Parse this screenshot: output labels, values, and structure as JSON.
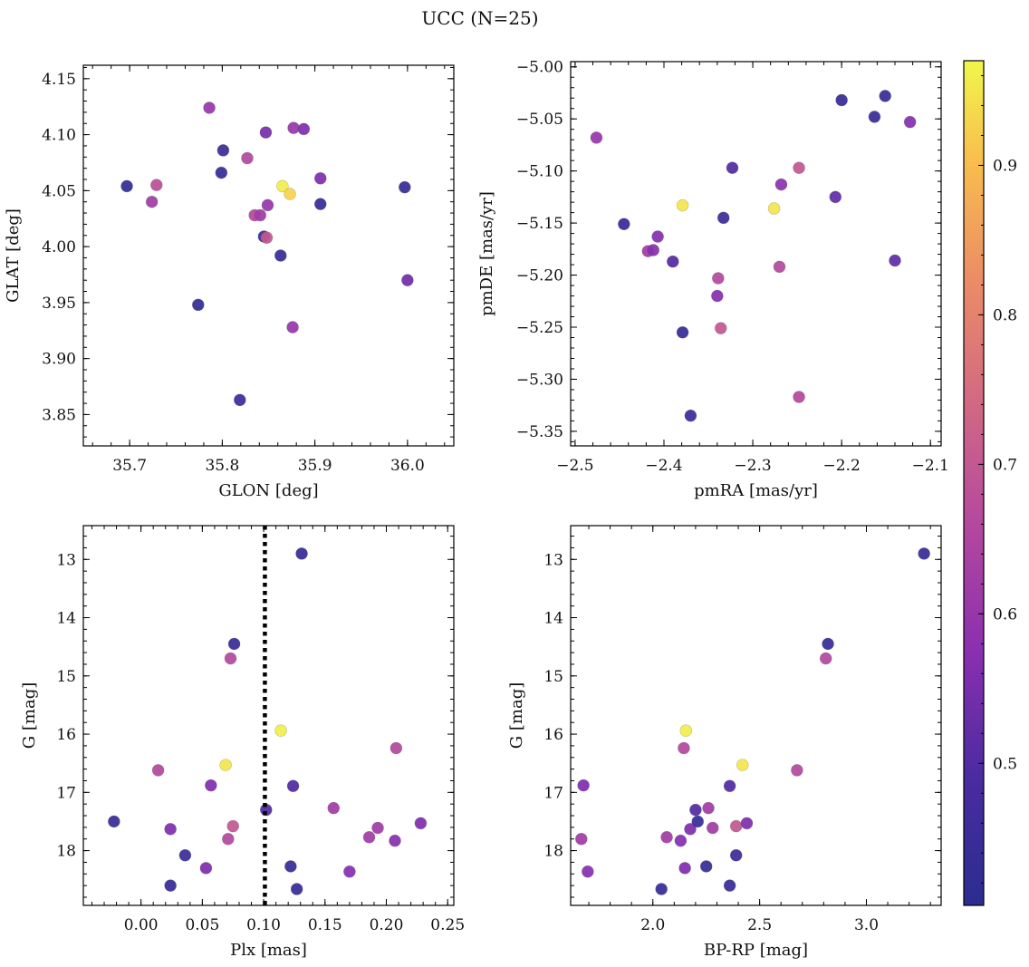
{
  "figure": {
    "title": "UCC (N=25)"
  },
  "colorbar": {
    "range": [
      0.405,
      0.97
    ],
    "ticks": [
      0.5,
      0.6,
      0.7,
      0.8,
      0.9
    ],
    "tick_labels": [
      "0.5",
      "0.6",
      "0.7",
      "0.8",
      "0.9"
    ]
  },
  "chart_data": [
    {
      "type": "scatter",
      "id": "glon_glat",
      "xlabel": "GLON [deg]",
      "ylabel": "GLAT [deg]",
      "xlim": [
        35.65,
        36.05
      ],
      "ylim": [
        3.822,
        4.162
      ],
      "xticks": [
        35.7,
        35.8,
        35.9,
        36.0
      ],
      "xtick_labels": [
        "35.7",
        "35.8",
        "35.9",
        "36.0"
      ],
      "yticks": [
        3.85,
        3.9,
        3.95,
        4.0,
        4.05,
        4.1,
        4.15
      ],
      "ytick_labels": [
        "3.85",
        "3.90",
        "3.95",
        "4.00",
        "4.05",
        "4.10",
        "4.15"
      ],
      "points": [
        {
          "x": 35.697,
          "y": 4.054,
          "c": 0.43
        },
        {
          "x": 35.724,
          "y": 4.04,
          "c": 0.62
        },
        {
          "x": 35.729,
          "y": 4.055,
          "c": 0.68
        },
        {
          "x": 35.774,
          "y": 3.948,
          "c": 0.43
        },
        {
          "x": 35.786,
          "y": 4.124,
          "c": 0.6
        },
        {
          "x": 35.799,
          "y": 4.066,
          "c": 0.44
        },
        {
          "x": 35.801,
          "y": 4.086,
          "c": 0.45
        },
        {
          "x": 35.819,
          "y": 3.863,
          "c": 0.45
        },
        {
          "x": 35.827,
          "y": 4.079,
          "c": 0.66
        },
        {
          "x": 35.835,
          "y": 4.028,
          "c": 0.66
        },
        {
          "x": 35.841,
          "y": 4.028,
          "c": 0.62
        },
        {
          "x": 35.845,
          "y": 4.009,
          "c": 0.45
        },
        {
          "x": 35.848,
          "y": 4.008,
          "c": 0.7
        },
        {
          "x": 35.847,
          "y": 4.102,
          "c": 0.55
        },
        {
          "x": 35.849,
          "y": 4.037,
          "c": 0.6
        },
        {
          "x": 35.865,
          "y": 4.054,
          "c": 0.96
        },
        {
          "x": 35.863,
          "y": 3.992,
          "c": 0.44
        },
        {
          "x": 35.873,
          "y": 4.047,
          "c": 0.93
        },
        {
          "x": 35.877,
          "y": 4.106,
          "c": 0.6
        },
        {
          "x": 35.876,
          "y": 3.928,
          "c": 0.6
        },
        {
          "x": 35.888,
          "y": 4.105,
          "c": 0.56
        },
        {
          "x": 35.906,
          "y": 4.061,
          "c": 0.56
        },
        {
          "x": 35.906,
          "y": 4.038,
          "c": 0.44
        },
        {
          "x": 35.997,
          "y": 4.053,
          "c": 0.44
        },
        {
          "x": 36.0,
          "y": 3.97,
          "c": 0.54
        }
      ]
    },
    {
      "type": "scatter",
      "id": "pmra_pmde",
      "xlabel": "pmRA [mas/yr]",
      "ylabel": "pmDE [mas/yr]",
      "xlim": [
        -2.505,
        -2.088
      ],
      "ylim": [
        -5.364,
        -4.995
      ],
      "xticks": [
        -2.5,
        -2.4,
        -2.3,
        -2.2,
        -2.1
      ],
      "xtick_labels": [
        "−2.5",
        "−2.4",
        "−2.3",
        "−2.2",
        "−2.1"
      ],
      "yticks": [
        -5.35,
        -5.3,
        -5.25,
        -5.2,
        -5.15,
        -5.1,
        -5.05,
        -5.0
      ],
      "ytick_labels": [
        "−5.35",
        "−5.30",
        "−5.25",
        "−5.20",
        "−5.15",
        "−5.10",
        "−5.05",
        "−5.00"
      ],
      "points": [
        {
          "x": -2.476,
          "y": -5.068,
          "c": 0.6
        },
        {
          "x": -2.445,
          "y": -5.151,
          "c": 0.44
        },
        {
          "x": -2.418,
          "y": -5.177,
          "c": 0.62
        },
        {
          "x": -2.412,
          "y": -5.176,
          "c": 0.57
        },
        {
          "x": -2.407,
          "y": -5.163,
          "c": 0.57
        },
        {
          "x": -2.39,
          "y": -5.187,
          "c": 0.5
        },
        {
          "x": -2.379,
          "y": -5.133,
          "c": 0.95
        },
        {
          "x": -2.379,
          "y": -5.255,
          "c": 0.44
        },
        {
          "x": -2.37,
          "y": -5.335,
          "c": 0.45
        },
        {
          "x": -2.339,
          "y": -5.203,
          "c": 0.66
        },
        {
          "x": -2.34,
          "y": -5.22,
          "c": 0.57
        },
        {
          "x": -2.336,
          "y": -5.251,
          "c": 0.7
        },
        {
          "x": -2.333,
          "y": -5.145,
          "c": 0.45
        },
        {
          "x": -2.323,
          "y": -5.097,
          "c": 0.5
        },
        {
          "x": -2.276,
          "y": -5.136,
          "c": 0.95
        },
        {
          "x": -2.27,
          "y": -5.192,
          "c": 0.66
        },
        {
          "x": -2.268,
          "y": -5.113,
          "c": 0.58
        },
        {
          "x": -2.248,
          "y": -5.097,
          "c": 0.7
        },
        {
          "x": -2.248,
          "y": -5.317,
          "c": 0.66
        },
        {
          "x": -2.207,
          "y": -5.125,
          "c": 0.52
        },
        {
          "x": -2.2,
          "y": -5.032,
          "c": 0.44
        },
        {
          "x": -2.163,
          "y": -5.048,
          "c": 0.44
        },
        {
          "x": -2.151,
          "y": -5.028,
          "c": 0.44
        },
        {
          "x": -2.14,
          "y": -5.186,
          "c": 0.52
        },
        {
          "x": -2.123,
          "y": -5.053,
          "c": 0.57
        }
      ]
    },
    {
      "type": "scatter",
      "id": "plx_g",
      "xlabel": "Plx [mas]",
      "ylabel": "G [mag]",
      "xlim": [
        -0.047,
        0.255
      ],
      "ylim": [
        18.94,
        12.42
      ],
      "y_inverted": true,
      "xticks": [
        0.0,
        0.05,
        0.1,
        0.15,
        0.2,
        0.25
      ],
      "xtick_labels": [
        "0.00",
        "0.05",
        "0.10",
        "0.15",
        "0.20",
        "0.25"
      ],
      "yticks": [
        13,
        14,
        15,
        16,
        17,
        18
      ],
      "ytick_labels": [
        "13",
        "14",
        "15",
        "16",
        "17",
        "18"
      ],
      "vline": {
        "x": 0.101,
        "style": "dotted"
      },
      "points": [
        {
          "x": -0.022,
          "y": 17.5,
          "c": 0.44
        },
        {
          "x": 0.014,
          "y": 16.62,
          "c": 0.66
        },
        {
          "x": 0.024,
          "y": 17.63,
          "c": 0.56
        },
        {
          "x": 0.024,
          "y": 18.6,
          "c": 0.44
        },
        {
          "x": 0.036,
          "y": 18.08,
          "c": 0.45
        },
        {
          "x": 0.053,
          "y": 18.3,
          "c": 0.56
        },
        {
          "x": 0.057,
          "y": 16.88,
          "c": 0.56
        },
        {
          "x": 0.069,
          "y": 16.53,
          "c": 0.95
        },
        {
          "x": 0.071,
          "y": 17.8,
          "c": 0.66
        },
        {
          "x": 0.073,
          "y": 14.7,
          "c": 0.66
        },
        {
          "x": 0.075,
          "y": 17.58,
          "c": 0.7
        },
        {
          "x": 0.076,
          "y": 14.45,
          "c": 0.44
        },
        {
          "x": 0.102,
          "y": 17.3,
          "c": 0.5
        },
        {
          "x": 0.114,
          "y": 15.94,
          "c": 0.96
        },
        {
          "x": 0.122,
          "y": 18.27,
          "c": 0.44
        },
        {
          "x": 0.124,
          "y": 16.89,
          "c": 0.5
        },
        {
          "x": 0.127,
          "y": 18.66,
          "c": 0.44
        },
        {
          "x": 0.131,
          "y": 12.9,
          "c": 0.44
        },
        {
          "x": 0.157,
          "y": 17.27,
          "c": 0.62
        },
        {
          "x": 0.17,
          "y": 18.36,
          "c": 0.57
        },
        {
          "x": 0.186,
          "y": 17.77,
          "c": 0.62
        },
        {
          "x": 0.193,
          "y": 17.61,
          "c": 0.62
        },
        {
          "x": 0.207,
          "y": 17.83,
          "c": 0.57
        },
        {
          "x": 0.208,
          "y": 16.24,
          "c": 0.66
        },
        {
          "x": 0.228,
          "y": 17.53,
          "c": 0.56
        }
      ]
    },
    {
      "type": "scatter",
      "id": "bprp_g",
      "xlabel": "BP-RP [mag]",
      "ylabel": "G [mag]",
      "xlim": [
        1.615,
        3.35
      ],
      "ylim": [
        18.94,
        12.42
      ],
      "y_inverted": true,
      "xticks": [
        2.0,
        2.5,
        3.0
      ],
      "xtick_labels": [
        "2.0",
        "2.5",
        "3.0"
      ],
      "yticks": [
        13,
        14,
        15,
        16,
        17,
        18
      ],
      "ytick_labels": [
        "13",
        "14",
        "15",
        "16",
        "17",
        "18"
      ],
      "points": [
        {
          "x": 1.665,
          "y": 17.8,
          "c": 0.62
        },
        {
          "x": 1.675,
          "y": 16.88,
          "c": 0.56
        },
        {
          "x": 1.695,
          "y": 18.36,
          "c": 0.57
        },
        {
          "x": 2.04,
          "y": 18.66,
          "c": 0.44
        },
        {
          "x": 2.065,
          "y": 17.77,
          "c": 0.62
        },
        {
          "x": 2.13,
          "y": 17.83,
          "c": 0.57
        },
        {
          "x": 2.145,
          "y": 16.24,
          "c": 0.66
        },
        {
          "x": 2.15,
          "y": 18.3,
          "c": 0.56
        },
        {
          "x": 2.155,
          "y": 15.94,
          "c": 0.96
        },
        {
          "x": 2.175,
          "y": 17.63,
          "c": 0.56
        },
        {
          "x": 2.2,
          "y": 17.3,
          "c": 0.5
        },
        {
          "x": 2.21,
          "y": 17.5,
          "c": 0.44
        },
        {
          "x": 2.25,
          "y": 18.27,
          "c": 0.44
        },
        {
          "x": 2.26,
          "y": 17.27,
          "c": 0.62
        },
        {
          "x": 2.28,
          "y": 17.61,
          "c": 0.62
        },
        {
          "x": 2.36,
          "y": 16.89,
          "c": 0.5
        },
        {
          "x": 2.36,
          "y": 18.6,
          "c": 0.44
        },
        {
          "x": 2.39,
          "y": 18.08,
          "c": 0.45
        },
        {
          "x": 2.39,
          "y": 17.58,
          "c": 0.7
        },
        {
          "x": 2.42,
          "y": 16.53,
          "c": 0.95
        },
        {
          "x": 2.44,
          "y": 17.53,
          "c": 0.56
        },
        {
          "x": 2.675,
          "y": 16.62,
          "c": 0.66
        },
        {
          "x": 2.81,
          "y": 14.7,
          "c": 0.66
        },
        {
          "x": 2.82,
          "y": 14.45,
          "c": 0.44
        },
        {
          "x": 3.27,
          "y": 12.9,
          "c": 0.44
        }
      ]
    }
  ]
}
